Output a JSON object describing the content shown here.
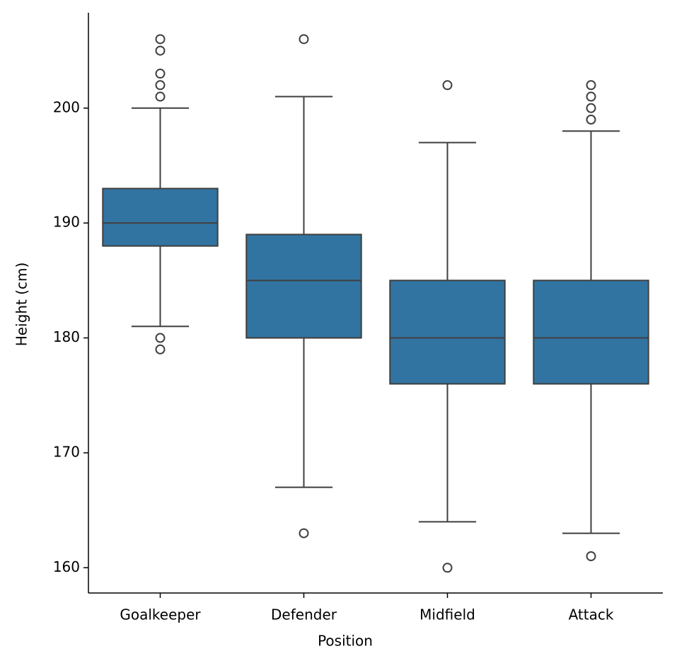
{
  "chart_data": {
    "type": "box",
    "xlabel": "Position",
    "ylabel": "Height (cm)",
    "categories": [
      "Goalkeeper",
      "Defender",
      "Midfield",
      "Attack"
    ],
    "boxes": [
      {
        "whislo": 181,
        "q1": 188,
        "med": 190,
        "q3": 193,
        "whishi": 200,
        "fliers": [
          206,
          205,
          203,
          202,
          201,
          180,
          179
        ]
      },
      {
        "whislo": 167,
        "q1": 180,
        "med": 185,
        "q3": 189,
        "whishi": 201,
        "fliers": [
          206,
          163
        ]
      },
      {
        "whislo": 164,
        "q1": 176,
        "med": 180,
        "q3": 185,
        "whishi": 197,
        "fliers": [
          202,
          160
        ]
      },
      {
        "whislo": 163,
        "q1": 176,
        "med": 180,
        "q3": 185,
        "whishi": 198,
        "fliers": [
          202,
          201,
          200,
          199,
          161
        ]
      }
    ],
    "color": "#3274a1",
    "edge_color": "#3f3f3f",
    "ylim": [
      157.8,
      208.3
    ],
    "yticks": [
      160,
      170,
      180,
      190,
      200
    ]
  }
}
